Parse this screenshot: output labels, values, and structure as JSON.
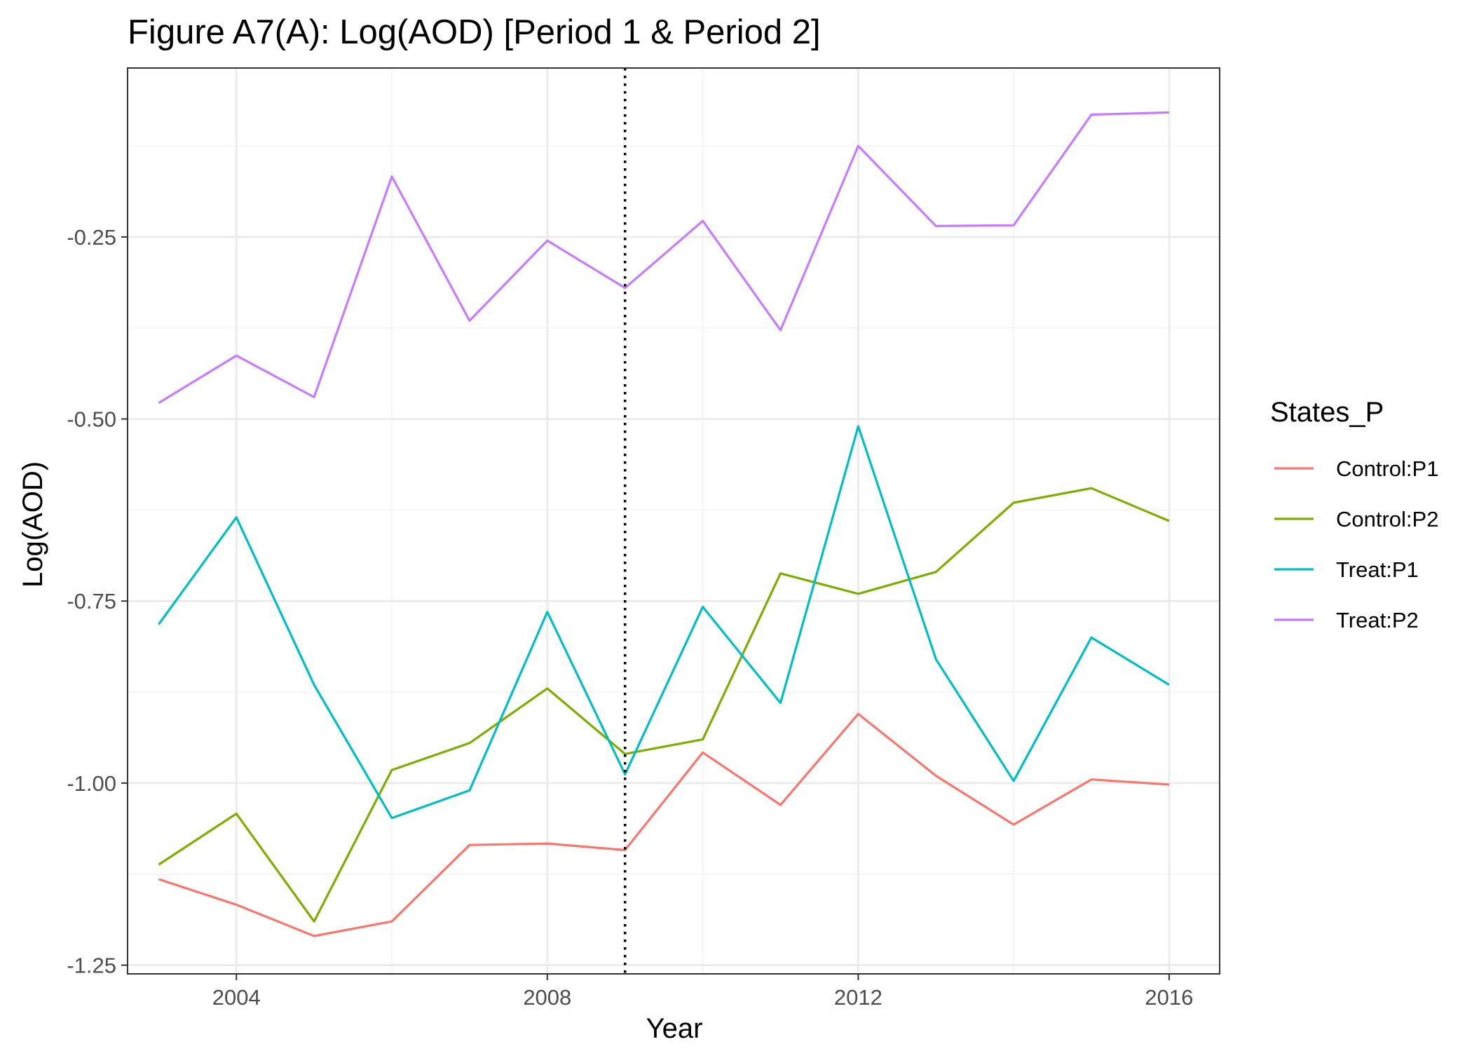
{
  "chart_data": {
    "type": "line",
    "title": "Figure A7(A): Log(AOD) [Period 1 & Period 2]",
    "xlabel": "Year",
    "ylabel": "Log(AOD)",
    "x": [
      2003,
      2004,
      2005,
      2006,
      2007,
      2008,
      2009,
      2010,
      2011,
      2012,
      2013,
      2014,
      2015,
      2016
    ],
    "xlim": [
      2002.6,
      2016.65
    ],
    "ylim": [
      -1.262,
      -0.018
    ],
    "x_ticks": [
      2004,
      2008,
      2012,
      2016
    ],
    "x_minor_ticks": [
      2002,
      2006,
      2010,
      2014
    ],
    "y_ticks": [
      -1.25,
      -1.0,
      -0.75,
      -0.5,
      -0.25
    ],
    "y_tick_labels": [
      "-1.25",
      "-1.00",
      "-0.75",
      "-0.50",
      "-0.25"
    ],
    "y_minor_ticks": [
      -1.125,
      -0.875,
      -0.625,
      -0.375,
      -0.125
    ],
    "vline": {
      "x": 2009,
      "style": "dotted"
    },
    "grid": true,
    "legend": {
      "title": "States_P",
      "position": "right"
    },
    "series": [
      {
        "name": "Control:P1",
        "color": "#F8766D",
        "values": [
          -1.132,
          -1.167,
          -1.21,
          -1.19,
          -1.085,
          -1.083,
          -1.092,
          -0.958,
          -1.03,
          -0.905,
          -0.99,
          -1.057,
          -0.995,
          -1.002
        ]
      },
      {
        "name": "Control:P2",
        "color": "#7CAE00",
        "values": [
          -1.112,
          -1.042,
          -1.19,
          -0.982,
          -0.945,
          -0.87,
          -0.96,
          -0.94,
          -0.712,
          -0.74,
          -0.71,
          -0.615,
          -0.595,
          -0.64
        ]
      },
      {
        "name": "Treat:P1",
        "color": "#00BFC4",
        "values": [
          -0.782,
          -0.635,
          -0.865,
          -1.048,
          -1.01,
          -0.765,
          -0.988,
          -0.758,
          -0.89,
          -0.51,
          -0.83,
          -0.997,
          -0.8,
          -0.865
        ]
      },
      {
        "name": "Treat:P2",
        "color": "#C77CFF",
        "values": [
          -0.478,
          -0.413,
          -0.47,
          -0.167,
          -0.365,
          -0.255,
          -0.32,
          -0.228,
          -0.378,
          -0.125,
          -0.235,
          -0.234,
          -0.082,
          -0.079
        ]
      }
    ]
  }
}
